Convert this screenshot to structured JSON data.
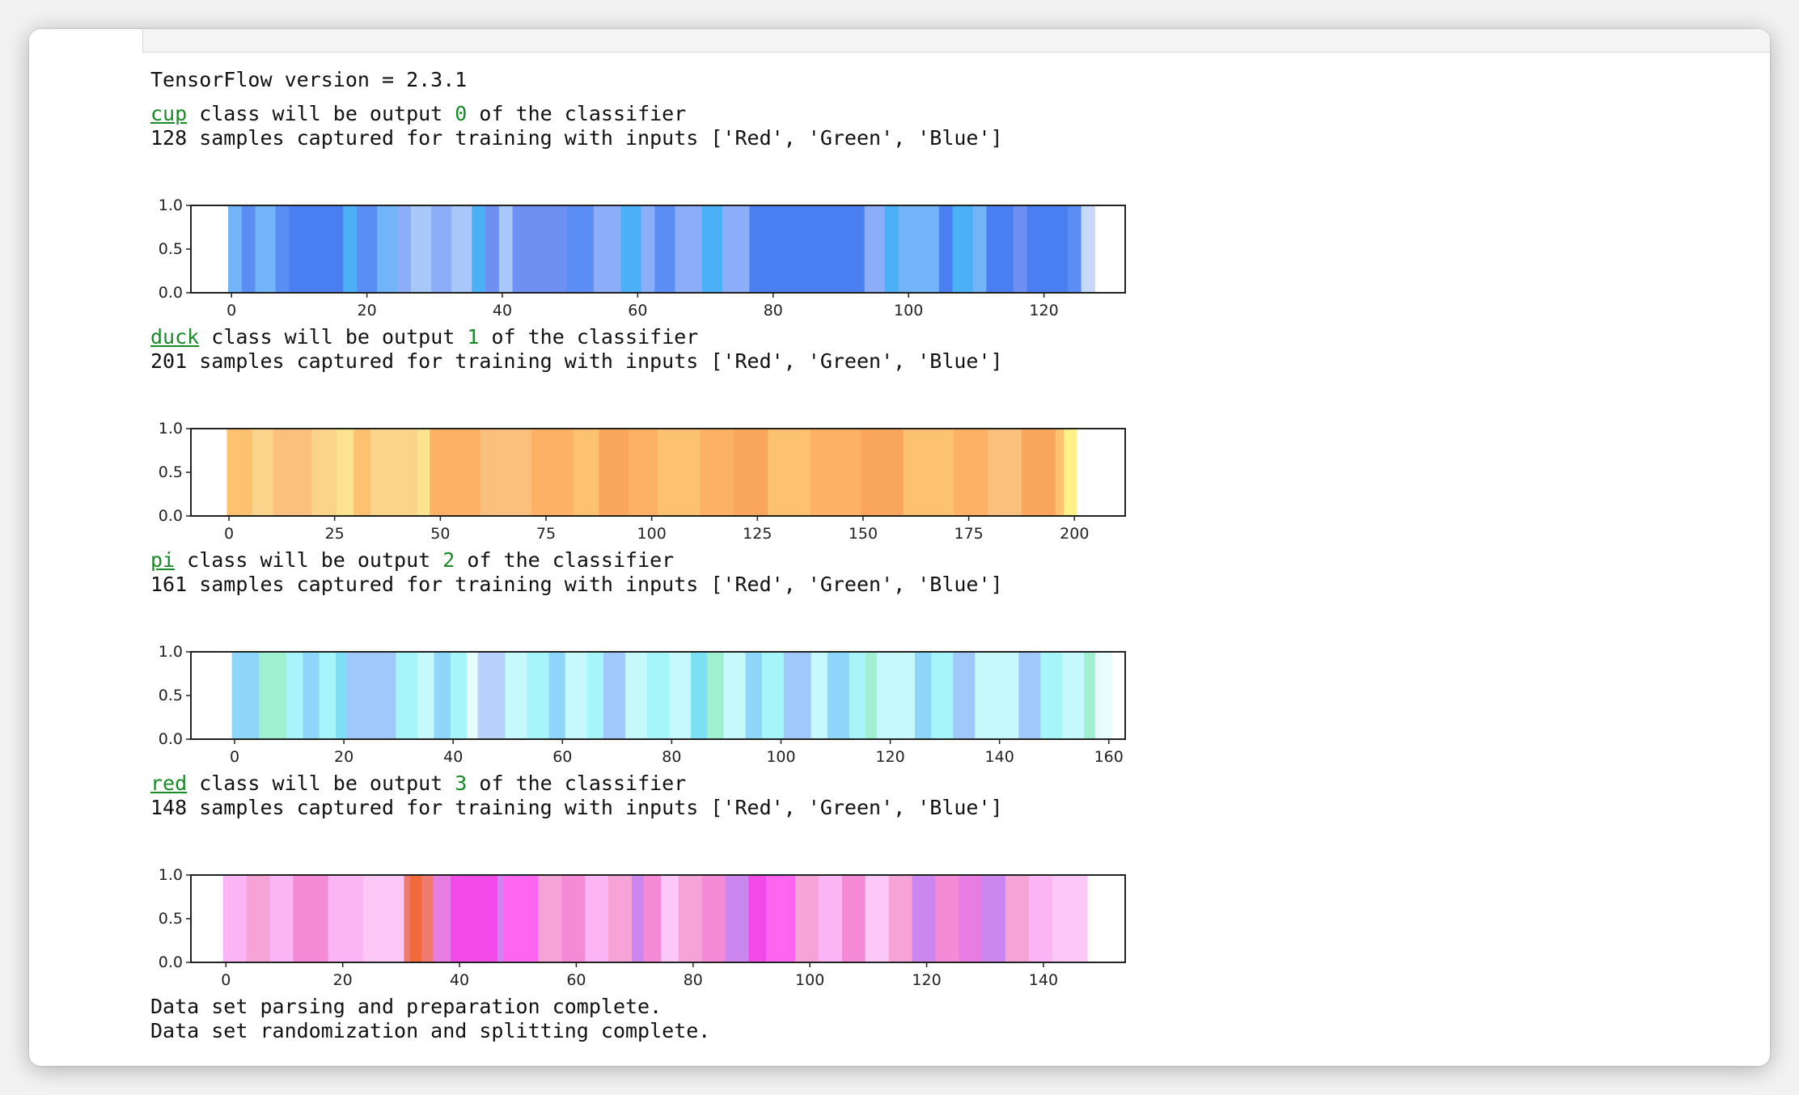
{
  "output": {
    "version_line": "TensorFlow version = 2.3.1",
    "footer_lines": [
      "Data set parsing and preparation complete.",
      "Data set randomization and splitting complete."
    ]
  },
  "classes": [
    {
      "name": "cup",
      "rest": " class will be output ",
      "index": "0",
      "tail": " of the classifier",
      "samples_line": "128 samples captured for training with inputs ['Red', 'Green', 'Blue']"
    },
    {
      "name": "duck",
      "rest": " class will be output ",
      "index": "1",
      "tail": " of the classifier",
      "samples_line": "201 samples captured for training with inputs ['Red', 'Green', 'Blue']"
    },
    {
      "name": "pi",
      "rest": " class will be output ",
      "index": "2",
      "tail": " of the classifier",
      "samples_line": "161 samples captured for training with inputs ['Red', 'Green', 'Blue']"
    },
    {
      "name": "red",
      "rest": " class will be output ",
      "index": "3",
      "tail": " of the classifier",
      "samples_line": "148 samples captured for training with inputs ['Red', 'Green', 'Blue']"
    }
  ],
  "chart_data": [
    {
      "type": "bar",
      "series_name": "cup",
      "n_samples": 128,
      "xlim": [
        -6,
        132
      ],
      "ylim": [
        0,
        1
      ],
      "xticks": [
        0,
        20,
        40,
        60,
        80,
        100,
        120
      ],
      "yticks": [
        "0.0",
        "0.5",
        "1.0"
      ],
      "value": 1.0,
      "palette": [
        "#5b8ef5",
        "#4a7ff2",
        "#72b4f8",
        "#8cadf7",
        "#a8c8fa",
        "#4cb0f7",
        "#6e90f3",
        "#c8d8fb"
      ],
      "segments": [
        [
          0,
          2,
          2
        ],
        [
          2,
          4,
          0
        ],
        [
          4,
          7,
          2
        ],
        [
          7,
          9,
          0
        ],
        [
          9,
          11,
          1
        ],
        [
          11,
          17,
          1
        ],
        [
          17,
          19,
          5
        ],
        [
          19,
          22,
          0
        ],
        [
          22,
          25,
          2
        ],
        [
          25,
          27,
          3
        ],
        [
          27,
          30,
          4
        ],
        [
          30,
          33,
          3
        ],
        [
          33,
          36,
          4
        ],
        [
          36,
          38,
          5
        ],
        [
          38,
          40,
          6
        ],
        [
          40,
          42,
          4
        ],
        [
          42,
          50,
          6
        ],
        [
          50,
          54,
          0
        ],
        [
          54,
          58,
          3
        ],
        [
          58,
          61,
          5
        ],
        [
          61,
          63,
          3
        ],
        [
          63,
          66,
          0
        ],
        [
          66,
          70,
          3
        ],
        [
          70,
          73,
          5
        ],
        [
          73,
          77,
          3
        ],
        [
          77,
          94,
          1
        ],
        [
          94,
          97,
          3
        ],
        [
          97,
          99,
          5
        ],
        [
          99,
          105,
          2
        ],
        [
          105,
          107,
          1
        ],
        [
          107,
          110,
          5
        ],
        [
          110,
          112,
          2
        ],
        [
          112,
          116,
          1
        ],
        [
          116,
          118,
          6
        ],
        [
          118,
          124,
          1
        ],
        [
          124,
          126,
          0
        ],
        [
          126,
          128,
          7
        ]
      ]
    },
    {
      "type": "bar",
      "series_name": "duck",
      "n_samples": 201,
      "xlim": [
        -9,
        212
      ],
      "ylim": [
        0,
        1
      ],
      "xticks": [
        0,
        25,
        50,
        75,
        100,
        125,
        150,
        175,
        200
      ],
      "yticks": [
        "0.0",
        "0.5",
        "1.0"
      ],
      "value": 1.0,
      "palette": [
        "#fcc270",
        "#fdb165",
        "#fbd38a",
        "#fde28f",
        "#f9a55b",
        "#fbc07c",
        "#fff08a"
      ],
      "segments": [
        [
          0,
          6,
          0
        ],
        [
          6,
          11,
          2
        ],
        [
          11,
          20,
          5
        ],
        [
          20,
          26,
          2
        ],
        [
          26,
          30,
          3
        ],
        [
          30,
          34,
          0
        ],
        [
          34,
          45,
          2
        ],
        [
          45,
          48,
          3
        ],
        [
          48,
          60,
          1
        ],
        [
          60,
          72,
          5
        ],
        [
          72,
          82,
          1
        ],
        [
          82,
          88,
          0
        ],
        [
          88,
          95,
          4
        ],
        [
          95,
          102,
          1
        ],
        [
          102,
          112,
          0
        ],
        [
          112,
          120,
          1
        ],
        [
          120,
          128,
          4
        ],
        [
          128,
          138,
          0
        ],
        [
          138,
          150,
          1
        ],
        [
          150,
          160,
          4
        ],
        [
          160,
          172,
          0
        ],
        [
          172,
          180,
          1
        ],
        [
          180,
          188,
          5
        ],
        [
          188,
          196,
          4
        ],
        [
          196,
          198,
          0
        ],
        [
          198,
          201,
          6
        ]
      ]
    },
    {
      "type": "bar",
      "series_name": "pi",
      "n_samples": 161,
      "xlim": [
        -8,
        163
      ],
      "ylim": [
        0,
        1
      ],
      "xticks": [
        0,
        20,
        40,
        60,
        80,
        100,
        120,
        140,
        160
      ],
      "yticks": [
        "0.0",
        "0.5",
        "1.0"
      ],
      "value": 1.0,
      "palette": [
        "#8fd6fb",
        "#a0c8fa",
        "#a6f5fa",
        "#9ff0d0",
        "#c6f9fc",
        "#b8d0fb",
        "#7ee0f5",
        "#e6fcfd"
      ],
      "segments": [
        [
          0,
          5,
          0
        ],
        [
          5,
          10,
          3
        ],
        [
          10,
          13,
          2
        ],
        [
          13,
          16,
          0
        ],
        [
          16,
          19,
          2
        ],
        [
          19,
          21,
          6
        ],
        [
          21,
          30,
          1
        ],
        [
          30,
          34,
          2
        ],
        [
          34,
          37,
          4
        ],
        [
          37,
          40,
          0
        ],
        [
          40,
          43,
          2
        ],
        [
          43,
          45,
          7
        ],
        [
          45,
          50,
          5
        ],
        [
          50,
          54,
          4
        ],
        [
          54,
          58,
          2
        ],
        [
          58,
          61,
          0
        ],
        [
          61,
          65,
          4
        ],
        [
          65,
          68,
          2
        ],
        [
          68,
          72,
          1
        ],
        [
          72,
          76,
          4
        ],
        [
          76,
          80,
          2
        ],
        [
          80,
          84,
          4
        ],
        [
          84,
          87,
          6
        ],
        [
          87,
          90,
          3
        ],
        [
          90,
          94,
          4
        ],
        [
          94,
          97,
          0
        ],
        [
          97,
          101,
          2
        ],
        [
          101,
          106,
          1
        ],
        [
          106,
          109,
          4
        ],
        [
          109,
          113,
          0
        ],
        [
          113,
          116,
          2
        ],
        [
          116,
          118,
          3
        ],
        [
          118,
          125,
          4
        ],
        [
          125,
          128,
          0
        ],
        [
          128,
          132,
          2
        ],
        [
          132,
          136,
          1
        ],
        [
          136,
          144,
          4
        ],
        [
          144,
          148,
          1
        ],
        [
          148,
          152,
          2
        ],
        [
          152,
          156,
          4
        ],
        [
          156,
          158,
          3
        ],
        [
          158,
          161,
          7
        ]
      ]
    },
    {
      "type": "bar",
      "series_name": "red",
      "n_samples": 148,
      "xlim": [
        -6,
        154
      ],
      "ylim": [
        0,
        1
      ],
      "xticks": [
        0,
        20,
        40,
        60,
        80,
        100,
        120,
        140
      ],
      "yticks": [
        "0.0",
        "0.5",
        "1.0"
      ],
      "value": 1.0,
      "palette": [
        "#fbb4f4",
        "#f6a4d8",
        "#f58ad6",
        "#ff66f0",
        "#f24ae8",
        "#cc86f0",
        "#ee7a70",
        "#f26a3a",
        "#fdc8f8",
        "#e77de0"
      ],
      "segments": [
        [
          0,
          4,
          0
        ],
        [
          4,
          8,
          1
        ],
        [
          8,
          12,
          0
        ],
        [
          12,
          18,
          2
        ],
        [
          18,
          24,
          0
        ],
        [
          24,
          31,
          8
        ],
        [
          31,
          32,
          6
        ],
        [
          32,
          34,
          7
        ],
        [
          34,
          36,
          6
        ],
        [
          36,
          39,
          9
        ],
        [
          39,
          47,
          4
        ],
        [
          47,
          48,
          5
        ],
        [
          48,
          54,
          3
        ],
        [
          54,
          58,
          1
        ],
        [
          58,
          62,
          2
        ],
        [
          62,
          66,
          0
        ],
        [
          66,
          70,
          1
        ],
        [
          70,
          72,
          5
        ],
        [
          72,
          75,
          2
        ],
        [
          75,
          78,
          8
        ],
        [
          78,
          82,
          1
        ],
        [
          82,
          86,
          2
        ],
        [
          86,
          90,
          5
        ],
        [
          90,
          93,
          4
        ],
        [
          93,
          98,
          3
        ],
        [
          98,
          102,
          1
        ],
        [
          102,
          106,
          0
        ],
        [
          106,
          110,
          2
        ],
        [
          110,
          114,
          8
        ],
        [
          114,
          118,
          1
        ],
        [
          118,
          122,
          5
        ],
        [
          122,
          126,
          2
        ],
        [
          126,
          130,
          9
        ],
        [
          130,
          134,
          5
        ],
        [
          134,
          138,
          1
        ],
        [
          138,
          142,
          0
        ],
        [
          142,
          148,
          8
        ]
      ]
    }
  ]
}
